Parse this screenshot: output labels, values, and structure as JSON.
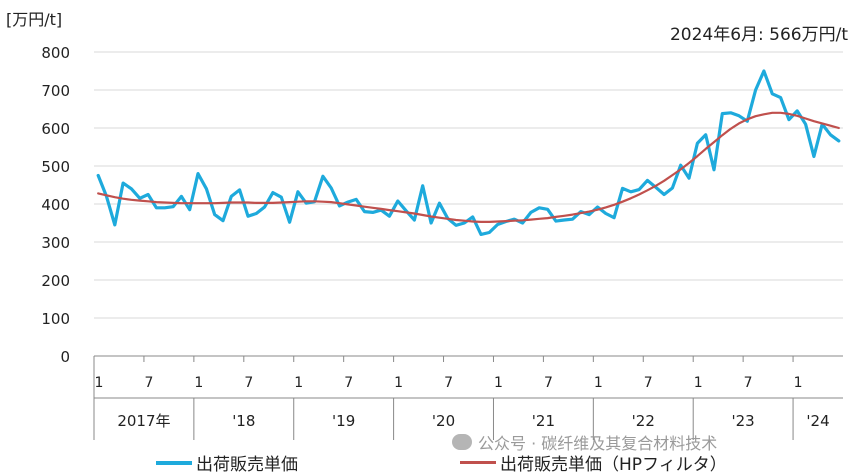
{
  "unit_label": "[万円/t]",
  "annotation": "2024年6月: 566万円/t",
  "watermark": "公众号 · 碳纤维及其复合材料技术",
  "chart_data": {
    "type": "line",
    "ylim": [
      0,
      800
    ],
    "yticks": [
      0,
      100,
      200,
      300,
      400,
      500,
      600,
      700,
      800
    ],
    "grid": "horizontal",
    "legend_position": "bottom",
    "month_tick_labels": [
      "1",
      "7",
      "1",
      "7",
      "1",
      "7",
      "1",
      "7",
      "1",
      "7",
      "1",
      "7",
      "1",
      "7",
      "1"
    ],
    "year_labels": [
      "2017年",
      "'18",
      "'19",
      "'20",
      "'21",
      "'22",
      "'23",
      "'24"
    ],
    "x_start": "2017-01",
    "x_end": "2024-06",
    "colors": {
      "raw": "#1eaadc",
      "hp": "#c0504d"
    },
    "series": [
      {
        "name": "出荷販売単価",
        "values": [
          475,
          420,
          345,
          455,
          440,
          415,
          425,
          390,
          390,
          393,
          420,
          385,
          480,
          440,
          372,
          356,
          420,
          437,
          368,
          375,
          392,
          430,
          418,
          352,
          432,
          402,
          406,
          473,
          442,
          395,
          405,
          412,
          380,
          378,
          384,
          368,
          408,
          382,
          358,
          448,
          350,
          402,
          362,
          344,
          350,
          366,
          320,
          325,
          346,
          354,
          360,
          350,
          378,
          390,
          386,
          355,
          358,
          360,
          380,
          372,
          392,
          375,
          364,
          441,
          432,
          438,
          462,
          444,
          425,
          442,
          502,
          468,
          560,
          582,
          490,
          638,
          640,
          632,
          618,
          700,
          750,
          690,
          680,
          622,
          645,
          610,
          525,
          610,
          582,
          566
        ]
      },
      {
        "name": "出荷販売単価（HPフィルタ）",
        "values": [
          428,
          423,
          418,
          414,
          411,
          409,
          407,
          405,
          404,
          403,
          402,
          402,
          402,
          402,
          402,
          403,
          404,
          404,
          404,
          403,
          403,
          403,
          404,
          405,
          406,
          407,
          407,
          406,
          405,
          402,
          399,
          396,
          393,
          390,
          387,
          384,
          381,
          378,
          375,
          371,
          367,
          364,
          361,
          358,
          356,
          354,
          353,
          353,
          354,
          355,
          356,
          357,
          359,
          361,
          363,
          366,
          369,
          372,
          376,
          380,
          385,
          391,
          398,
          406,
          415,
          425,
          436,
          448,
          461,
          476,
          491,
          508,
          526,
          545,
          563,
          581,
          598,
          612,
          623,
          631,
          636,
          640,
          640,
          637,
          632,
          625,
          618,
          612,
          606,
          600
        ]
      }
    ]
  }
}
